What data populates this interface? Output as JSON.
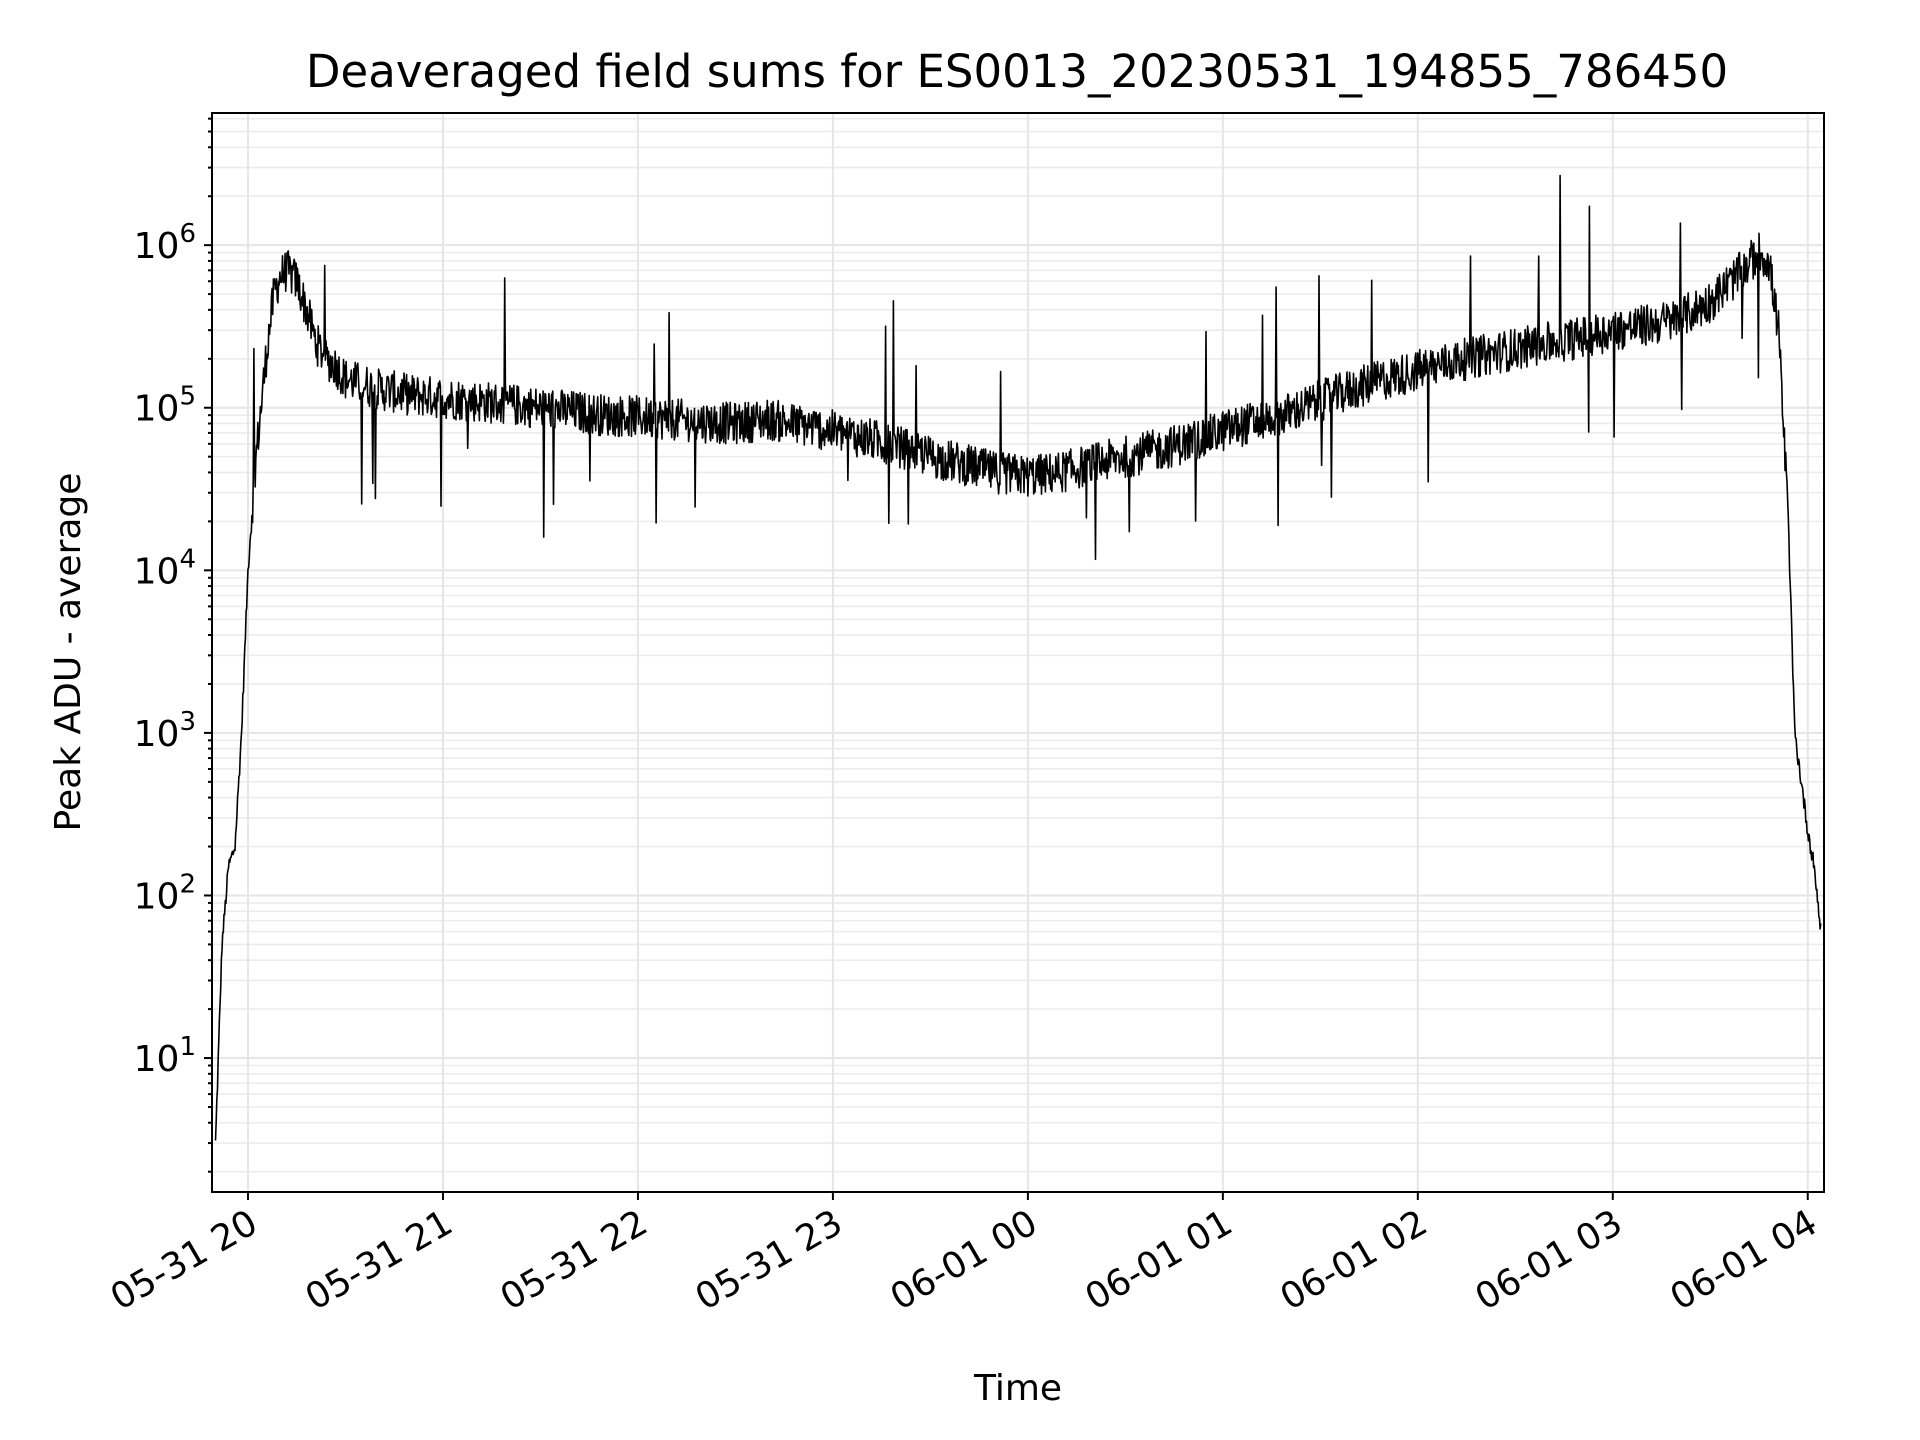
{
  "chart_data": {
    "type": "line",
    "title": "Deaveraged field sums for ES0013_20230531_194855_786450",
    "xlabel": "Time",
    "ylabel": "Peak ADU - average",
    "yscale": "log",
    "xlim": [
      "2023-05-31 19:48:55",
      "2023-06-01 04:05:00"
    ],
    "ylim": [
      1.5,
      6500000
    ],
    "grid": true,
    "legend": "none",
    "line_color": "#000000",
    "x_ticks": [
      {
        "value": "2023-05-31 20:00",
        "label": "05-31 20"
      },
      {
        "value": "2023-05-31 21:00",
        "label": "05-31 21"
      },
      {
        "value": "2023-05-31 22:00",
        "label": "05-31 22"
      },
      {
        "value": "2023-05-31 23:00",
        "label": "05-31 23"
      },
      {
        "value": "2023-06-01 00:00",
        "label": "06-01 00"
      },
      {
        "value": "2023-06-01 01:00",
        "label": "06-01 01"
      },
      {
        "value": "2023-06-01 02:00",
        "label": "06-01 02"
      },
      {
        "value": "2023-06-01 03:00",
        "label": "06-01 03"
      },
      {
        "value": "2023-06-01 04:00",
        "label": "06-01 04"
      }
    ],
    "y_ticks": [
      {
        "value": 10,
        "base": "10",
        "exp": "1"
      },
      {
        "value": 100,
        "base": "10",
        "exp": "2"
      },
      {
        "value": 1000,
        "base": "10",
        "exp": "3"
      },
      {
        "value": 10000,
        "base": "10",
        "exp": "4"
      },
      {
        "value": 100000,
        "base": "10",
        "exp": "5"
      },
      {
        "value": 1000000,
        "base": "10",
        "exp": "6"
      }
    ],
    "x": [
      "2023-05-31 19:50",
      "2023-05-31 19:52",
      "2023-05-31 19:54",
      "2023-05-31 19:56",
      "2023-05-31 19:58",
      "2023-05-31 20:00",
      "2023-05-31 20:02",
      "2023-05-31 20:04",
      "2023-05-31 20:06",
      "2023-05-31 20:08",
      "2023-05-31 20:10",
      "2023-05-31 20:12",
      "2023-05-31 20:15",
      "2023-05-31 20:18",
      "2023-05-31 20:21",
      "2023-05-31 20:24",
      "2023-05-31 20:27",
      "2023-05-31 20:30",
      "2023-05-31 20:35",
      "2023-05-31 20:40",
      "2023-05-31 20:45",
      "2023-05-31 20:50",
      "2023-05-31 21:00",
      "2023-05-31 21:10",
      "2023-05-31 21:20",
      "2023-05-31 21:30",
      "2023-05-31 21:40",
      "2023-05-31 21:50",
      "2023-05-31 22:00",
      "2023-05-31 22:10",
      "2023-05-31 22:20",
      "2023-05-31 22:30",
      "2023-05-31 22:40",
      "2023-05-31 22:50",
      "2023-05-31 23:00",
      "2023-05-31 23:10",
      "2023-05-31 23:20",
      "2023-05-31 23:30",
      "2023-05-31 23:40",
      "2023-05-31 23:50",
      "2023-06-01 00:00",
      "2023-06-01 00:10",
      "2023-06-01 00:20",
      "2023-06-01 00:30",
      "2023-06-01 00:40",
      "2023-06-01 00:50",
      "2023-06-01 01:00",
      "2023-06-01 01:10",
      "2023-06-01 01:20",
      "2023-06-01 01:30",
      "2023-06-01 01:40",
      "2023-06-01 01:50",
      "2023-06-01 02:00",
      "2023-06-01 02:10",
      "2023-06-01 02:20",
      "2023-06-01 02:30",
      "2023-06-01 02:40",
      "2023-06-01 02:50",
      "2023-06-01 03:00",
      "2023-06-01 03:10",
      "2023-06-01 03:20",
      "2023-06-01 03:30",
      "2023-06-01 03:40",
      "2023-06-01 03:45",
      "2023-06-01 03:48",
      "2023-06-01 03:51",
      "2023-06-01 03:54",
      "2023-06-01 03:56",
      "2023-06-01 03:58",
      "2023-06-01 04:00",
      "2023-06-01 04:02",
      "2023-06-01 04:04"
    ],
    "y": [
      3,
      50,
      150,
      200,
      1000,
      10000,
      40000,
      100000,
      250000,
      500000,
      650000,
      700000,
      600000,
      400000,
      250000,
      200000,
      180000,
      150000,
      140000,
      130000,
      125000,
      120000,
      115000,
      110000,
      105000,
      100000,
      95000,
      90000,
      88000,
      85000,
      82000,
      80000,
      85000,
      78000,
      72000,
      65000,
      58000,
      50000,
      45000,
      40000,
      38000,
      40000,
      45000,
      50000,
      55000,
      62000,
      72000,
      82000,
      92000,
      110000,
      130000,
      150000,
      170000,
      190000,
      210000,
      230000,
      250000,
      270000,
      300000,
      320000,
      350000,
      450000,
      700000,
      900000,
      800000,
      300000,
      20000,
      1000,
      500,
      250,
      150,
      60
    ]
  }
}
